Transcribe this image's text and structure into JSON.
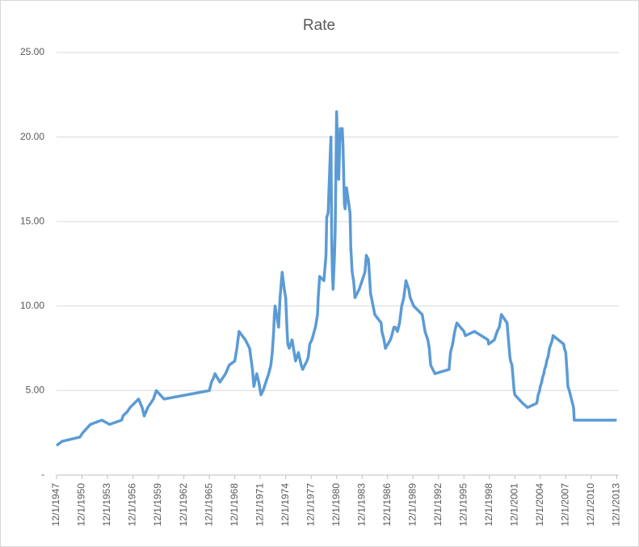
{
  "chart_data": {
    "type": "line",
    "title": "Rate",
    "series": [
      {
        "name": "Rate",
        "color": "#5b9bd5",
        "x": [
          "12/1/1947",
          "8/1/1948",
          "9/1/1950",
          "1/1/1951",
          "12/1/1951",
          "4/1/1953",
          "3/1/1954",
          "8/1/1955",
          "10/1/1955",
          "4/1/1956",
          "8/1/1956",
          "8/1/1957",
          "1/1/1958",
          "4/1/1958",
          "9/1/1958",
          "5/1/1959",
          "9/1/1959",
          "8/1/1960",
          "12/1/1965",
          "3/1/1966",
          "6/1/1966",
          "8/1/1966",
          "3/1/1967",
          "11/1/1967",
          "4/1/1968",
          "12/1/1968",
          "1/1/1969",
          "3/1/1969",
          "6/1/1969",
          "3/1/1970",
          "9/1/1970",
          "1/1/1971",
          "3/1/1971",
          "7/1/1971",
          "10/1/1971",
          "1/1/1972",
          "4/1/1972",
          "8/1/1972",
          "12/1/1972",
          "3/1/1973",
          "5/1/1973",
          "7/1/1973",
          "8/1/1973",
          "9/1/1973",
          "2/1/1974",
          "4/1/1974",
          "7/1/1974",
          "10/1/1974",
          "12/1/1974",
          "2/1/1975",
          "3/1/1975",
          "5/1/1975",
          "9/1/1975",
          "12/1/1975",
          "2/1/1976",
          "6/1/1976",
          "10/1/1976",
          "12/1/1976",
          "6/1/1977",
          "8/1/1977",
          "10/1/1977",
          "1/1/1978",
          "6/1/1978",
          "9/1/1978",
          "10/1/1978",
          "12/1/1978",
          "6/1/1979",
          "9/1/1979",
          "10/1/1979",
          "12/1/1979",
          "3/1/1980",
          "4/1/1980",
          "5/1/1980",
          "6/1/1980",
          "7/1/1980",
          "9/1/1980",
          "10/1/1980",
          "12/1/1980",
          "1/1/1981",
          "3/1/1981",
          "5/1/1981",
          "6/1/1981",
          "8/1/1981",
          "9/1/1981",
          "11/1/1981",
          "12/1/1981",
          "2/1/1982",
          "7/1/1982",
          "8/1/1982",
          "10/1/1982",
          "12/1/1982",
          "2/1/1983",
          "8/1/1983",
          "4/1/1984",
          "6/1/1984",
          "9/1/1984",
          "12/1/1984",
          "6/1/1985",
          "3/1/1986",
          "4/1/1986",
          "7/1/1986",
          "9/1/1986",
          "4/1/1987",
          "6/1/1987",
          "9/1/1987",
          "11/1/1987",
          "2/1/1988",
          "5/1/1988",
          "8/1/1988",
          "11/1/1988",
          "2/1/1989",
          "6/1/1989",
          "8/1/1989",
          "1/1/1990",
          "1/1/1991",
          "5/1/1991",
          "9/1/1991",
          "11/1/1991",
          "1/1/1992",
          "7/1/1992",
          "3/1/1994",
          "4/1/1994",
          "5/1/1994",
          "8/1/1994",
          "11/1/1994",
          "2/1/1995",
          "7/1/1995",
          "12/1/1995",
          "2/1/1996",
          "3/1/1997",
          "10/1/1998",
          "11/1/1998",
          "7/1/1999",
          "9/1/1999",
          "11/1/1999",
          "2/1/2000",
          "3/1/2000",
          "5/1/2000",
          "1/1/2001",
          "2/1/2001",
          "4/1/2001",
          "5/1/2001",
          "6/1/2001",
          "8/1/2001",
          "9/1/2001",
          "10/1/2001",
          "11/1/2001",
          "12/1/2001",
          "11/1/2002",
          "6/1/2003",
          "7/1/2004",
          "8/1/2004",
          "9/1/2004",
          "11/1/2004",
          "12/1/2004",
          "2/1/2005",
          "3/1/2005",
          "5/1/2005",
          "6/1/2005",
          "8/1/2005",
          "9/1/2005",
          "11/1/2005",
          "12/1/2005",
          "1/1/2006",
          "3/1/2006",
          "5/1/2006",
          "6/1/2006",
          "9/1/2007",
          "10/1/2007",
          "12/1/2007",
          "2/1/2008",
          "3/1/2008",
          "5/1/2008",
          "11/1/2008",
          "12/1/2008",
          "12/1/2013"
        ],
        "values": [
          1.75,
          2.0,
          2.25,
          2.5,
          3.0,
          3.25,
          3.0,
          3.25,
          3.5,
          3.75,
          4.0,
          4.5,
          4.0,
          3.5,
          4.0,
          4.5,
          5.0,
          4.5,
          5.0,
          5.5,
          5.75,
          6.0,
          5.5,
          6.0,
          6.5,
          6.75,
          7.0,
          7.5,
          8.5,
          8.0,
          7.5,
          6.25,
          5.25,
          6.0,
          5.5,
          4.75,
          5.0,
          5.5,
          6.0,
          6.5,
          7.25,
          8.5,
          9.5,
          10.0,
          8.75,
          10.5,
          12.0,
          11.0,
          10.5,
          8.5,
          7.75,
          7.5,
          8.0,
          7.25,
          6.75,
          7.25,
          6.5,
          6.25,
          6.75,
          7.0,
          7.75,
          8.0,
          8.75,
          9.5,
          10.5,
          11.75,
          11.5,
          13.0,
          15.25,
          15.5,
          19.0,
          20.0,
          14.0,
          12.0,
          11.0,
          13.0,
          14.5,
          21.5,
          20.0,
          17.5,
          20.5,
          20.0,
          20.5,
          19.5,
          16.0,
          15.75,
          17.0,
          15.5,
          13.5,
          12.0,
          11.5,
          10.5,
          11.0,
          12.0,
          13.0,
          12.75,
          10.75,
          9.5,
          9.0,
          8.5,
          8.0,
          7.5,
          8.0,
          8.25,
          8.75,
          8.75,
          8.5,
          9.0,
          10.0,
          10.5,
          11.5,
          11.0,
          10.5,
          10.0,
          9.5,
          8.5,
          8.0,
          7.5,
          6.5,
          6.0,
          6.25,
          6.75,
          7.25,
          7.75,
          8.5,
          9.0,
          8.75,
          8.5,
          8.25,
          8.5,
          8.0,
          7.75,
          8.0,
          8.25,
          8.5,
          8.75,
          9.0,
          9.5,
          9.0,
          8.5,
          7.5,
          7.0,
          6.75,
          6.5,
          6.0,
          5.5,
          5.0,
          4.75,
          4.25,
          4.0,
          4.25,
          4.5,
          4.75,
          5.0,
          5.25,
          5.5,
          5.75,
          6.0,
          6.25,
          6.5,
          6.75,
          7.0,
          7.25,
          7.5,
          7.75,
          8.0,
          8.25,
          7.75,
          7.5,
          7.25,
          6.0,
          5.25,
          5.0,
          4.0,
          3.25,
          3.25
        ]
      }
    ],
    "xlim": [
      "12/1/1947",
      "3/1/2014"
    ],
    "xticks": [
      "12/1/1947",
      "12/1/1950",
      "12/1/1953",
      "12/1/1956",
      "12/1/1959",
      "12/1/1962",
      "12/1/1965",
      "12/1/1968",
      "12/1/1971",
      "12/1/1974",
      "12/1/1977",
      "12/1/1980",
      "12/1/1983",
      "12/1/1986",
      "12/1/1989",
      "12/1/1992",
      "12/1/1995",
      "12/1/1998",
      "12/1/2001",
      "12/1/2004",
      "12/1/2007",
      "12/1/2010",
      "12/1/2013"
    ],
    "ylim": [
      0,
      25
    ],
    "yticks": [
      {
        "value": 0,
        "label": "-"
      },
      {
        "value": 5,
        "label": "5.00"
      },
      {
        "value": 10,
        "label": "10.00"
      },
      {
        "value": 15,
        "label": "15.00"
      },
      {
        "value": 20,
        "label": "20.00"
      },
      {
        "value": 25,
        "label": "25.00"
      }
    ],
    "grid": true
  }
}
